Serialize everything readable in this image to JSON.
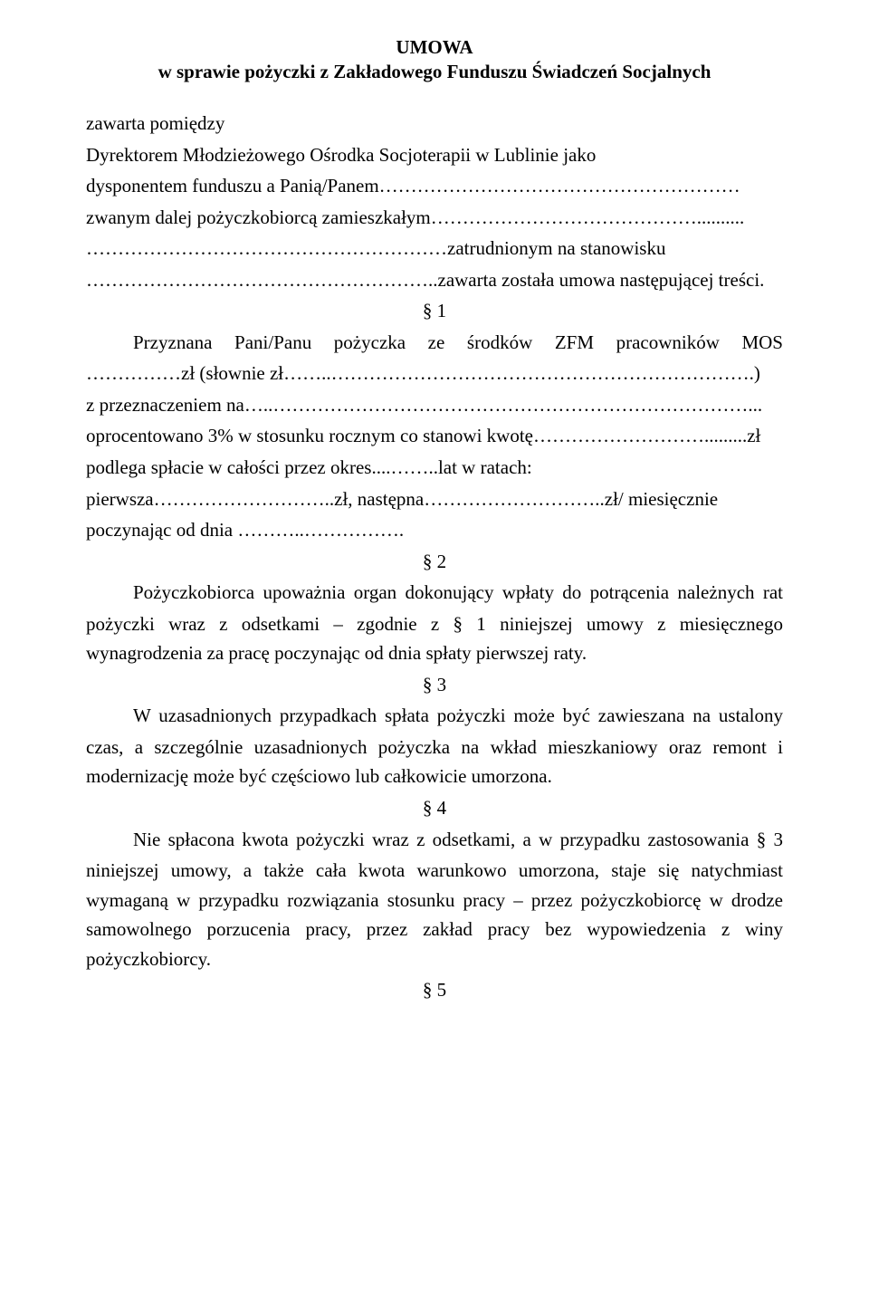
{
  "title": "UMOWA",
  "subtitle": "w sprawie pożyczki z Zakładowego Funduszu Świadczeń Socjalnych",
  "intro1": "zawarta pomiędzy",
  "intro2": "Dyrektorem Młodzieżowego Ośrodka Socjoterapii w Lublinie jako",
  "intro3": "dysponentem funduszu a Panią/Panem…………………………………………………",
  "intro4": "zwanym dalej pożyczkobiorcą zamieszkałym……………………………………..........",
  "intro5": "…………………………………………………zatrudnionym na stanowisku",
  "intro6": "………………………………………………..zawarta została umowa następującej treści.",
  "section1_mark": "§ 1",
  "s1_line1": "Przyznana Pani/Panu pożyczka ze środków ZFM pracowników MOS",
  "s1_line2": "……………zł (słownie zł……..………………………………………………………….)",
  "s1_line3": "z przeznaczeniem na…..…………………………………………………………………...",
  "s1_line4": "oprocentowano 3% w stosunku rocznym co stanowi kwotę……………………….........zł",
  "s1_line5": "podlega spłacie w całości przez okres....……..lat w ratach:",
  "s1_line6": "pierwsza………………………..zł, następna………………………..zł/ miesięcznie",
  "s1_line7": "poczynając od dnia ………..…………….",
  "section2_mark": "§ 2",
  "s2_line1": "Pożyczkobiorca upoważnia organ dokonujący wpłaty do potrącenia należnych rat",
  "s2_line2": "pożyczki wraz z odsetkami – zgodnie z § 1 niniejszej umowy z miesięcznego wynagrodzenia za pracę poczynając od dnia spłaty pierwszej raty.",
  "section3_mark": "§ 3",
  "s3_line1": "W uzasadnionych przypadkach spłata pożyczki może być zawieszana na ustalony",
  "s3_line2": "czas, a szczególnie uzasadnionych pożyczka na wkład mieszkaniowy oraz remont i modernizację może być częściowo lub całkowicie umorzona.",
  "section4_mark": "§ 4",
  "s4_line1": "Nie spłacona kwota pożyczki wraz z odsetkami, a w przypadku zastosowania § 3",
  "s4_line2": "niniejszej umowy, a także cała kwota warunkowo umorzona, staje się natychmiast wymaganą w przypadku rozwiązania stosunku pracy – przez pożyczkobiorcę w drodze samowolnego porzucenia pracy, przez zakład pracy bez wypowiedzenia z winy pożyczkobiorcy.",
  "section5_mark": "§ 5"
}
